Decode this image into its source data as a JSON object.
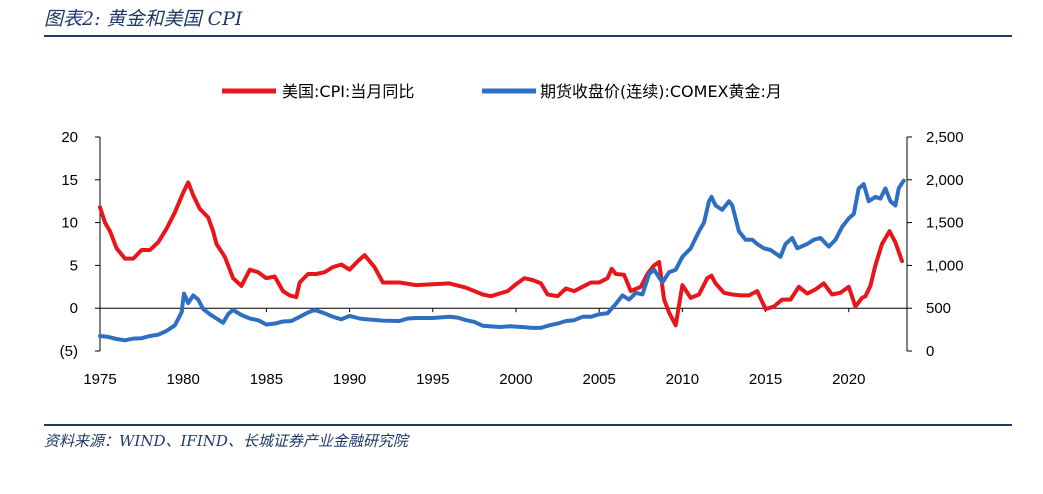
{
  "header": {
    "title": "图表2:  黄金和美国 CPI"
  },
  "footer": {
    "source": "资料来源：WIND、IFIND、长城证券产业金融研究院"
  },
  "colors": {
    "cpi": "#e8161b",
    "gold": "#2f6fc2",
    "rule": "#1f3a68"
  },
  "chart_data": {
    "type": "line",
    "legend_position": "top",
    "grid": false,
    "x_ticks": [
      "1975",
      "1980",
      "1985",
      "1990",
      "1995",
      "2000",
      "2005",
      "2010",
      "2015",
      "2020"
    ],
    "xlim": [
      1975,
      2023.5
    ],
    "y_left": {
      "ticks": [
        "20",
        "15",
        "10",
        "5",
        "0",
        "(5)"
      ],
      "ylim": [
        -5,
        20
      ],
      "negative_color": "#e8161b"
    },
    "y_right": {
      "ticks": [
        "2,500",
        "2,000",
        "1,500",
        "1,000",
        "500",
        "0"
      ],
      "ylim": [
        0,
        2500
      ]
    },
    "series": [
      {
        "name": "美国:CPI:当月同比",
        "axis": "left",
        "color": "#e8161b",
        "x": [
          1975.0,
          1975.3,
          1975.6,
          1976.0,
          1976.5,
          1977.0,
          1977.5,
          1978.0,
          1978.5,
          1979.0,
          1979.5,
          1980.0,
          1980.3,
          1980.6,
          1981.0,
          1981.5,
          1981.8,
          1982.0,
          1982.5,
          1983.0,
          1983.5,
          1984.0,
          1984.5,
          1985.0,
          1985.5,
          1986.0,
          1986.4,
          1986.8,
          1987.0,
          1987.5,
          1988.0,
          1988.5,
          1989.0,
          1989.5,
          1990.0,
          1990.5,
          1990.9,
          1991.5,
          1992.0,
          1993.0,
          1994.0,
          1995.0,
          1996.0,
          1997.0,
          1998.0,
          1998.5,
          1999.0,
          1999.5,
          2000.0,
          2000.5,
          2001.0,
          2001.5,
          2001.9,
          2002.5,
          2003.0,
          2003.5,
          2004.0,
          2004.5,
          2005.0,
          2005.5,
          2005.75,
          2006.0,
          2006.5,
          2006.9,
          2007.5,
          2007.9,
          2008.3,
          2008.6,
          2008.9,
          2009.2,
          2009.6,
          2010.0,
          2010.5,
          2011.0,
          2011.5,
          2011.75,
          2012.0,
          2012.5,
          2013.0,
          2013.5,
          2014.0,
          2014.5,
          2015.0,
          2015.5,
          2016.0,
          2016.5,
          2017.0,
          2017.5,
          2018.0,
          2018.5,
          2019.0,
          2019.5,
          2020.0,
          2020.4,
          2020.8,
          2021.0,
          2021.3,
          2021.6,
          2022.0,
          2022.45,
          2022.8,
          2023.2
        ],
        "values": [
          11.8,
          10.0,
          9.0,
          7.0,
          5.8,
          5.8,
          6.8,
          6.8,
          7.7,
          9.3,
          11.2,
          13.5,
          14.7,
          13.2,
          11.6,
          10.6,
          9.0,
          7.5,
          6.0,
          3.5,
          2.6,
          4.5,
          4.2,
          3.5,
          3.7,
          2.0,
          1.5,
          1.3,
          3.0,
          4.0,
          4.0,
          4.2,
          4.8,
          5.1,
          4.5,
          5.5,
          6.2,
          4.8,
          3.0,
          3.0,
          2.7,
          2.8,
          2.9,
          2.4,
          1.6,
          1.4,
          1.7,
          2.0,
          2.8,
          3.5,
          3.3,
          2.9,
          1.6,
          1.4,
          2.3,
          2.0,
          2.5,
          3.0,
          3.0,
          3.5,
          4.6,
          4.0,
          3.9,
          2.0,
          2.5,
          4.0,
          5.0,
          5.4,
          1.0,
          -0.5,
          -2.0,
          2.7,
          1.2,
          1.6,
          3.5,
          3.8,
          2.9,
          1.8,
          1.6,
          1.5,
          1.5,
          2.0,
          -0.1,
          0.2,
          1.0,
          1.0,
          2.5,
          1.7,
          2.2,
          2.9,
          1.6,
          1.8,
          2.5,
          0.2,
          1.2,
          1.4,
          2.6,
          5.0,
          7.5,
          9.0,
          7.7,
          5.5
        ]
      },
      {
        "name": "期货收盘价(连续):COMEX黄金:月",
        "axis": "right",
        "color": "#2f6fc2",
        "x": [
          1975.0,
          1975.5,
          1976.0,
          1976.5,
          1977.0,
          1977.5,
          1978.0,
          1978.5,
          1979.0,
          1979.5,
          1979.9,
          1980.05,
          1980.3,
          1980.6,
          1980.9,
          1981.2,
          1981.6,
          1982.0,
          1982.4,
          1982.7,
          1983.0,
          1983.5,
          1984.0,
          1984.5,
          1985.0,
          1985.5,
          1986.0,
          1986.5,
          1987.0,
          1987.5,
          1987.9,
          1988.5,
          1989.0,
          1989.5,
          1990.0,
          1990.6,
          1991.0,
          1992.0,
          1993.0,
          1993.5,
          1994.0,
          1995.0,
          1996.0,
          1996.5,
          1997.0,
          1997.5,
          1998.0,
          1999.0,
          1999.7,
          2000.0,
          2001.0,
          2001.5,
          2002.0,
          2002.5,
          2003.0,
          2003.5,
          2004.0,
          2004.5,
          2005.0,
          2005.5,
          2006.0,
          2006.4,
          2006.8,
          2007.2,
          2007.6,
          2008.0,
          2008.3,
          2008.8,
          2009.2,
          2009.6,
          2010.0,
          2010.5,
          2011.0,
          2011.3,
          2011.6,
          2011.75,
          2012.0,
          2012.4,
          2012.8,
          2013.0,
          2013.4,
          2013.8,
          2014.2,
          2014.5,
          2014.9,
          2015.3,
          2015.9,
          2016.2,
          2016.6,
          2016.9,
          2017.5,
          2017.9,
          2018.3,
          2018.8,
          2019.2,
          2019.6,
          2020.0,
          2020.3,
          2020.6,
          2020.9,
          2021.2,
          2021.6,
          2021.9,
          2022.2,
          2022.5,
          2022.8,
          2023.0,
          2023.3
        ],
        "values": [
          175,
          165,
          140,
          125,
          145,
          150,
          175,
          190,
          235,
          300,
          450,
          670,
          560,
          650,
          600,
          490,
          430,
          380,
          330,
          430,
          480,
          420,
          380,
          360,
          310,
          320,
          345,
          350,
          400,
          450,
          480,
          440,
          400,
          370,
          410,
          380,
          370,
          355,
          350,
          380,
          385,
          385,
          400,
          390,
          360,
          340,
          295,
          280,
          290,
          285,
          270,
          270,
          300,
          320,
          350,
          360,
          400,
          400,
          430,
          440,
          550,
          650,
          600,
          680,
          660,
          900,
          950,
          800,
          920,
          950,
          1100,
          1200,
          1400,
          1500,
          1750,
          1800,
          1700,
          1650,
          1750,
          1700,
          1400,
          1300,
          1300,
          1250,
          1200,
          1180,
          1100,
          1250,
          1320,
          1200,
          1250,
          1300,
          1320,
          1220,
          1300,
          1450,
          1550,
          1600,
          1900,
          1950,
          1750,
          1800,
          1780,
          1900,
          1750,
          1700,
          1900,
          1990
        ]
      }
    ]
  }
}
